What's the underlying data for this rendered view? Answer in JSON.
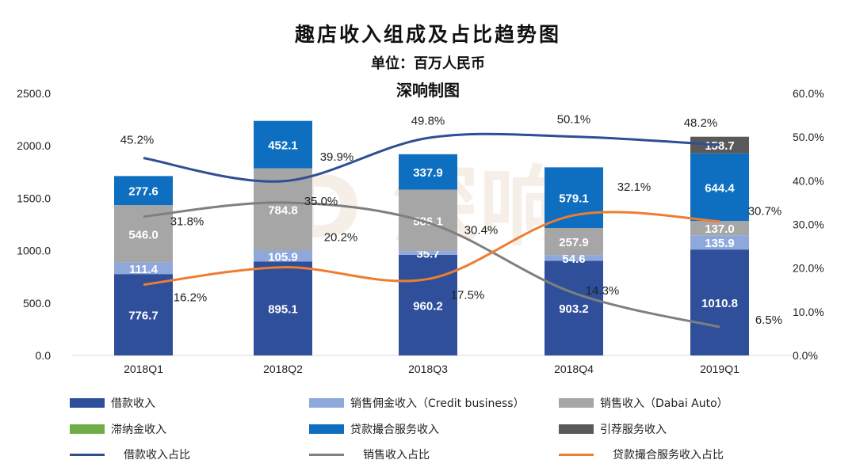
{
  "chart_data": {
    "type": "bar",
    "title": "趣店收入组成及占比趋势图",
    "subtitle": "单位：百万人民币",
    "credit": "深响制图",
    "categories": [
      "2018Q1",
      "2018Q2",
      "2018Q3",
      "2018Q4",
      "2019Q1"
    ],
    "y_left": {
      "range": [
        0,
        2500
      ],
      "ticks": [
        "0.0",
        "500.0",
        "1000.0",
        "1500.0",
        "2000.0",
        "2500.0"
      ]
    },
    "y_right": {
      "range": [
        0,
        60
      ],
      "ticks": [
        "0.0%",
        "10.0%",
        "20.0%",
        "30.0%",
        "40.0%",
        "50.0%",
        "60.0%"
      ]
    },
    "grid": false,
    "legend_position": "bottom",
    "bar_series": [
      {
        "name": "借款收入",
        "color": "#2f4f9a",
        "values": [
          776.7,
          895.1,
          960.2,
          903.2,
          1010.8
        ]
      },
      {
        "name": "销售佣金收入（Credit business）",
        "color": "#8fa8dc",
        "values": [
          111.4,
          105.9,
          35.7,
          54.6,
          135.9
        ]
      },
      {
        "name": "销售收入（Dabai Auto）",
        "color": "#a6a6a6",
        "values": [
          546.0,
          784.8,
          586.1,
          257.9,
          137.0
        ]
      },
      {
        "name": "滞纳金收入",
        "color": "#70ad47",
        "values": [
          0,
          0,
          0,
          0,
          0
        ]
      },
      {
        "name": "贷款撮合服务收入",
        "color": "#0e6fc1",
        "values": [
          277.6,
          452.1,
          337.9,
          579.1,
          644.4
        ]
      },
      {
        "name": "引荐服务收入",
        "color": "#595959",
        "values": [
          0,
          0,
          0,
          0,
          158.7
        ]
      }
    ],
    "line_series": [
      {
        "name": "借款收入占比",
        "color": "#2e4f94",
        "values": [
          45.2,
          39.9,
          49.8,
          50.1,
          48.2
        ]
      },
      {
        "name": "销售收入占比",
        "color": "#7f7f7f",
        "values": [
          31.8,
          35.0,
          30.4,
          14.3,
          6.5
        ]
      },
      {
        "name": "贷款撮合服务收入占比",
        "color": "#ed7d31",
        "values": [
          16.2,
          20.2,
          17.5,
          32.1,
          30.7
        ]
      }
    ]
  }
}
